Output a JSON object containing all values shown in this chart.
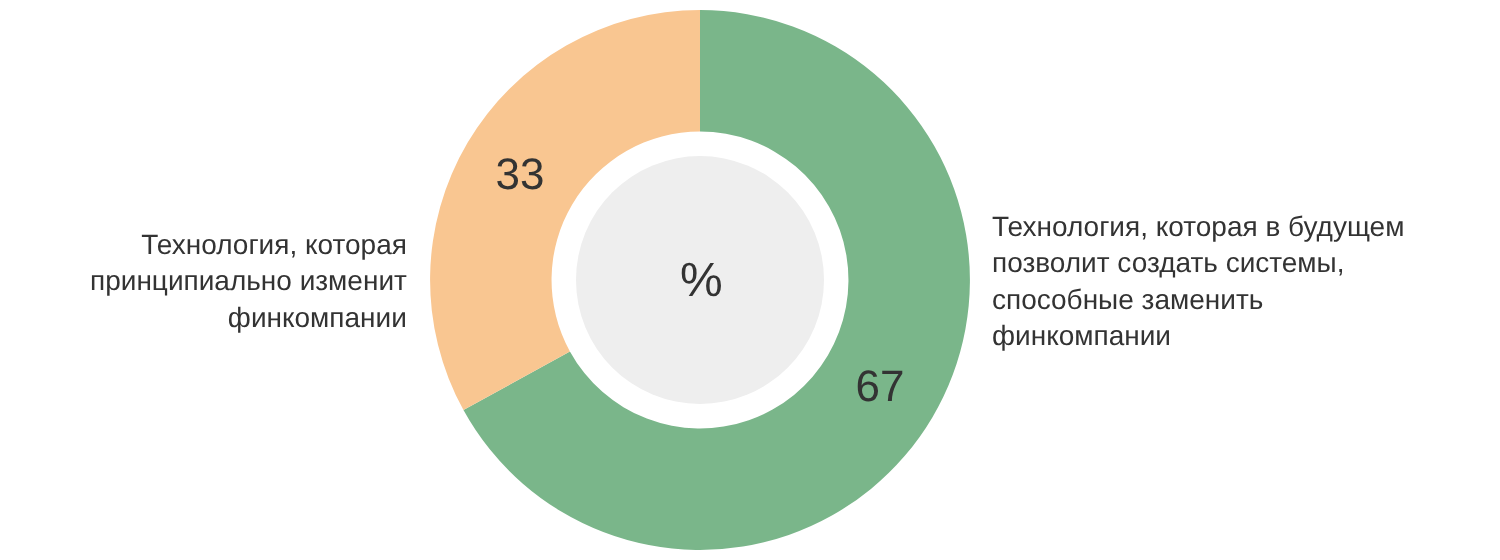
{
  "chart_data": {
    "type": "donut",
    "categories": [
      "Технология, которая в будущем\nпозволит создать системы,\nспособные заменить\nфинкомпании",
      "Технология, которая\nпринципиально изменит\nфинкомпании"
    ],
    "values": [
      67,
      33
    ],
    "colors": [
      "#7ab68a",
      "#f9c691"
    ],
    "data_labels": true,
    "legend": false,
    "annotations": [
      "%"
    ]
  }
}
